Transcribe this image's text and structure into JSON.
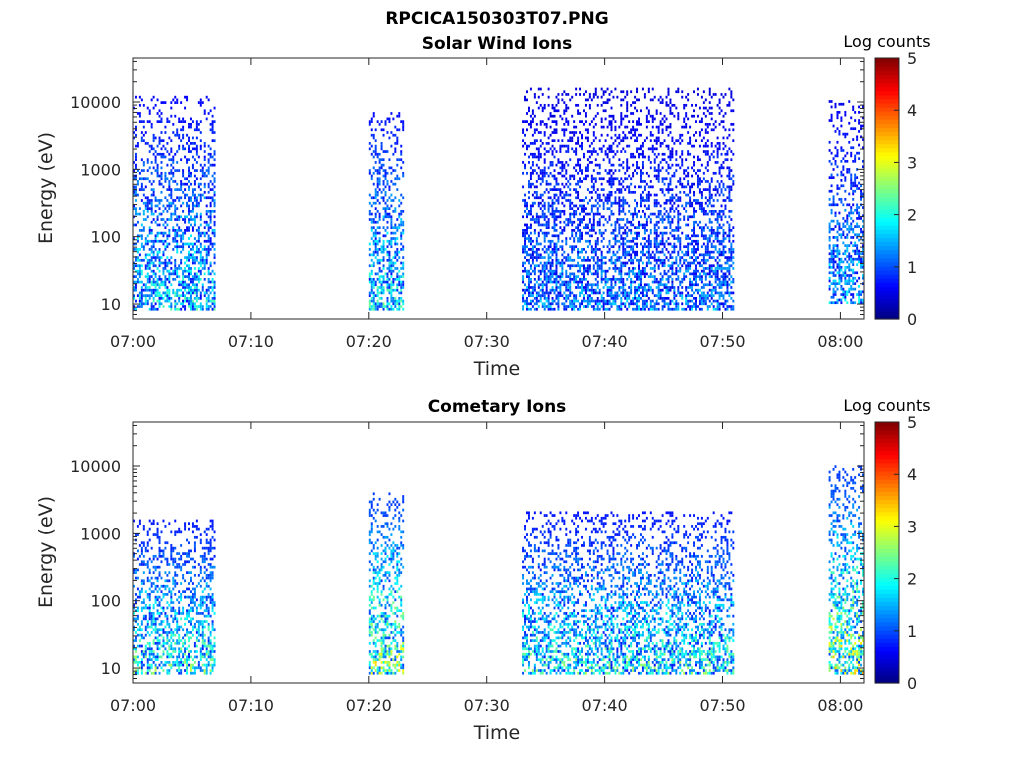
{
  "figure": {
    "title": "RPCICA150303T07.PNG"
  },
  "colormap": "jet",
  "chart_data": [
    {
      "type": "heatmap",
      "title": "Solar Wind Ions",
      "xlabel": "Time",
      "ylabel": "Energy (eV)",
      "x_scale": "time",
      "y_scale": "log",
      "xlim": [
        "07:00",
        "08:02"
      ],
      "ylim": [
        6,
        45000
      ],
      "xticks": [
        "07:00",
        "07:10",
        "07:20",
        "07:30",
        "07:40",
        "07:50",
        "08:00"
      ],
      "yticks": [
        "10",
        "100",
        "1000",
        "10000"
      ],
      "colorbar": {
        "label": "Log counts",
        "ticks": [
          "0",
          "1",
          "2",
          "3",
          "4",
          "5"
        ],
        "range": [
          0,
          5
        ]
      },
      "data_bursts": [
        {
          "start": "07:00",
          "end": "07:07",
          "emin": 8,
          "emax": 12000,
          "peak_log_counts": 2.4
        },
        {
          "start": "07:20",
          "end": "07:23",
          "emin": 8,
          "emax": 7000,
          "peak_log_counts": 2.6
        },
        {
          "start": "07:33",
          "end": "07:51",
          "emin": 8,
          "emax": 15000,
          "peak_log_counts": 1.8
        },
        {
          "start": "07:59",
          "end": "08:02",
          "emin": 10,
          "emax": 10000,
          "peak_log_counts": 2.1
        }
      ]
    },
    {
      "type": "heatmap",
      "title": "Cometary Ions",
      "xlabel": "Time",
      "ylabel": "Energy (eV)",
      "x_scale": "time",
      "y_scale": "log",
      "xlim": [
        "07:00",
        "08:02"
      ],
      "ylim": [
        6,
        45000
      ],
      "xticks": [
        "07:00",
        "07:10",
        "07:20",
        "07:30",
        "07:40",
        "07:50",
        "08:00"
      ],
      "yticks": [
        "10",
        "100",
        "1000",
        "10000"
      ],
      "colorbar": {
        "label": "Log counts",
        "ticks": [
          "0",
          "1",
          "2",
          "3",
          "4",
          "5"
        ],
        "range": [
          0,
          5
        ]
      },
      "data_bursts": [
        {
          "start": "07:00",
          "end": "07:07",
          "emin": 8,
          "emax": 1500,
          "peak_log_counts": 2.9
        },
        {
          "start": "07:20",
          "end": "07:23",
          "emin": 8,
          "emax": 4000,
          "peak_log_counts": 3.5
        },
        {
          "start": "07:33",
          "end": "07:51",
          "emin": 8,
          "emax": 2000,
          "peak_log_counts": 2.8
        },
        {
          "start": "07:59",
          "end": "08:02",
          "emin": 8,
          "emax": 10000,
          "peak_log_counts": 3.6
        }
      ]
    }
  ]
}
